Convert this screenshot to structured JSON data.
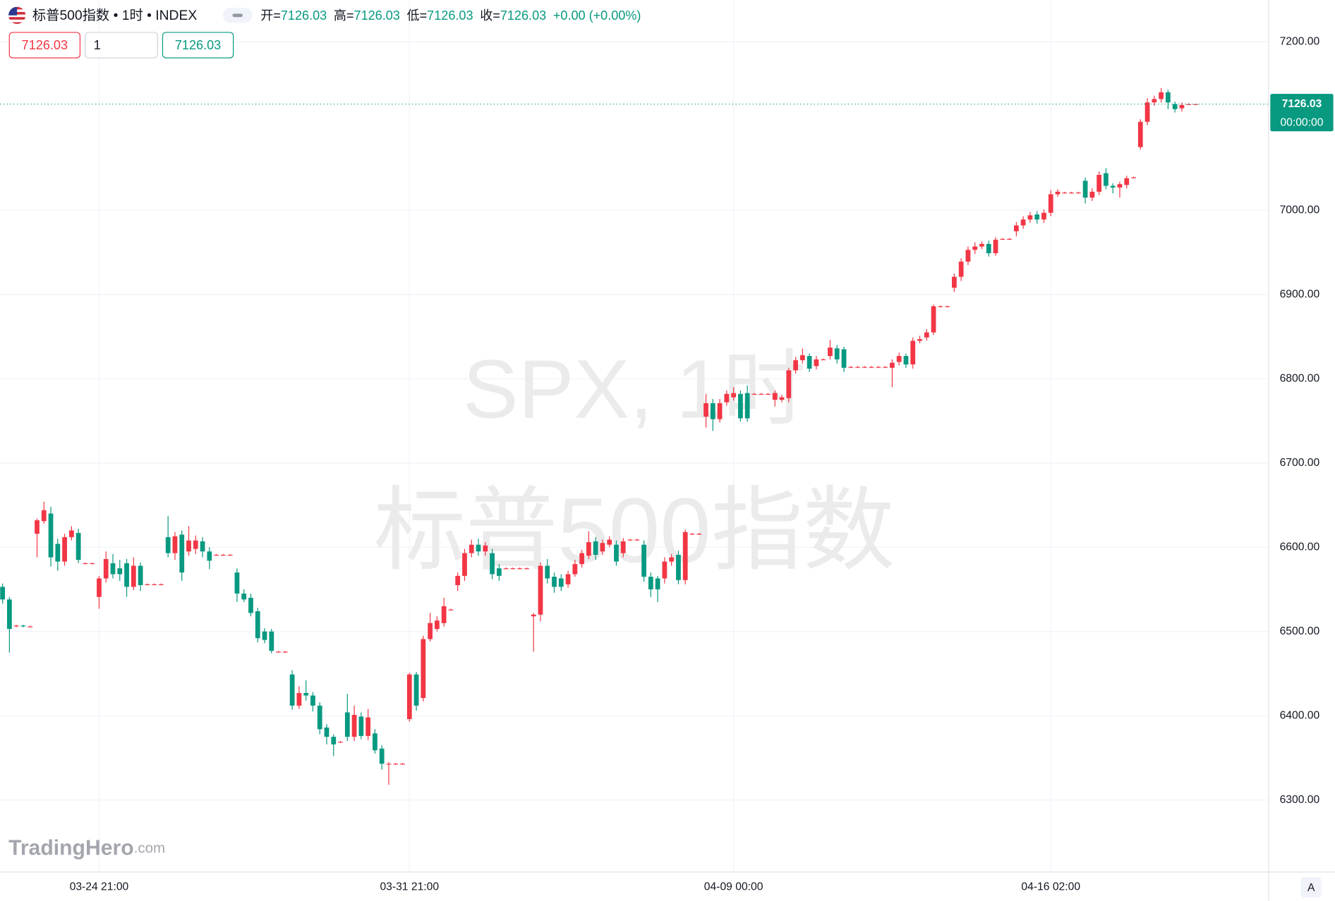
{
  "chart_data": {
    "type": "candlestick",
    "header": {
      "symbol": "标普500指数 • 1时 • INDEX",
      "ohlc": [
        {
          "label": "开=",
          "value": "7126.03"
        },
        {
          "label": "高=",
          "value": "7126.03"
        },
        {
          "label": "低=",
          "value": "7126.03"
        },
        {
          "label": "收=",
          "value": "7126.03"
        }
      ],
      "change": "+0.00 (+0.00%)",
      "buttons": [
        "7126.03",
        "1",
        "7126.03"
      ]
    },
    "watermark": [
      "SPX, 1时",
      "标普500指数"
    ],
    "logo": {
      "name": "TradingHero",
      "suffix": ".com"
    },
    "axis_button": "A",
    "last_price": {
      "value": 7126.03,
      "label": "7126.03",
      "time": "00:00:00"
    },
    "up_color": "#f23645",
    "down_color": "#089981",
    "grid": true,
    "ylim": [
      6214.5,
      7249.5
    ],
    "yticks": [
      {
        "value": 6300,
        "label": "6300.00"
      },
      {
        "value": 6400,
        "label": "6400.00"
      },
      {
        "value": 6500,
        "label": "6500.00"
      },
      {
        "value": 6600,
        "label": "6600.00"
      },
      {
        "value": 6700,
        "label": "6700.00"
      },
      {
        "value": 6800,
        "label": "6800.00"
      },
      {
        "value": 6900,
        "label": "6900.00"
      },
      {
        "value": 7000,
        "label": "7000.00"
      },
      {
        "value": 7200,
        "label": "7200.00"
      }
    ],
    "x": [
      null,
      null,
      null,
      null,
      null,
      null,
      null,
      null,
      null,
      null,
      null,
      null,
      null,
      null,
      "03-24 21:00",
      null,
      null,
      null,
      null,
      null,
      null,
      null,
      null,
      null,
      null,
      null,
      null,
      null,
      null,
      null,
      null,
      null,
      null,
      null,
      null,
      null,
      null,
      null,
      null,
      null,
      null,
      null,
      null,
      null,
      null,
      null,
      null,
      null,
      null,
      null,
      null,
      null,
      null,
      null,
      null,
      null,
      null,
      null,
      null,
      "03-31 21:00",
      null,
      null,
      null,
      null,
      null,
      null,
      null,
      null,
      null,
      null,
      null,
      null,
      null,
      null,
      null,
      null,
      null,
      null,
      null,
      null,
      null,
      null,
      null,
      null,
      null,
      null,
      null,
      null,
      null,
      null,
      null,
      null,
      null,
      null,
      null,
      null,
      null,
      null,
      null,
      null,
      null,
      null,
      null,
      null,
      null,
      null,
      "04-09 00:00",
      null,
      null,
      null,
      null,
      null,
      null,
      null,
      null,
      null,
      null,
      null,
      null,
      null,
      null,
      null,
      null,
      null,
      null,
      null,
      null,
      null,
      null,
      null,
      null,
      null,
      null,
      null,
      null,
      null,
      null,
      null,
      null,
      null,
      null,
      null,
      null,
      null,
      null,
      null,
      null,
      null,
      null,
      null,
      null,
      null,
      "04-16 02:00",
      null,
      null,
      null,
      null,
      null,
      null,
      null,
      null,
      null,
      null,
      null,
      null,
      null,
      null,
      null,
      null,
      null,
      null,
      null,
      null,
      null
    ],
    "open": [
      6553,
      6538,
      6506,
      6507,
      6506,
      6616,
      6631,
      6640,
      6604,
      6583,
      6612,
      6617,
      6581,
      6581,
      6541,
      6563,
      6581,
      6575,
      6581,
      6553,
      6578,
      6556,
      6556,
      6556,
      6612,
      6593,
      6615,
      6595,
      6598,
      6607,
      6595,
      6591,
      6591,
      6591,
      6570,
      6545,
      6540,
      6524,
      6500,
      6500,
      6476,
      6476,
      6449,
      6412,
      6427,
      6424,
      6412,
      6386,
      6375,
      6369,
      6404,
      6375,
      6399,
      6376,
      6379,
      6361,
      6342,
      6343,
      6343,
      6396,
      6449,
      6421,
      6491,
      6503,
      6510,
      6526,
      6555,
      6566,
      6593,
      6603,
      6595,
      6593,
      6575,
      6575,
      6575,
      6575,
      6575,
      6518,
      6520,
      6578,
      6565,
      6563,
      6556,
      6568,
      6580,
      6590,
      6607,
      6595,
      6603,
      6603,
      6593,
      6609,
      6609,
      6603,
      6565,
      6563,
      6563,
      6583,
      6591,
      6561,
      6616,
      6616,
      6755,
      6771,
      6752,
      6772,
      6778,
      6782,
      6783,
      6782,
      6782,
      6782,
      6775,
      6775,
      6777,
      6810,
      6822,
      6827,
      6815,
      6823,
      6827,
      6836,
      6835,
      6814,
      6814,
      6814,
      6814,
      6814,
      6814,
      6813,
      6820,
      6827,
      6817,
      6845,
      6849,
      6855,
      6886,
      6886,
      6908,
      6921,
      6939,
      6953,
      6957,
      6960,
      6949,
      6966,
      6966,
      6975,
      6982,
      6989,
      6995,
      6989,
      6997,
      7019,
      7021,
      7021,
      7021,
      7035,
      7015,
      7022,
      7044,
      7029,
      7027,
      7030,
      7039,
      7075,
      7105,
      7128,
      7132,
      7140,
      7126,
      7121,
      7126,
      7126.03
    ],
    "high": [
      6557,
      6541,
      6508,
      6508,
      6507,
      6634,
      6654,
      6648,
      6610,
      6616,
      6625,
      6622,
      6582,
      6582,
      6566,
      6595,
      6592,
      6585,
      6586,
      6588,
      6582,
      6557,
      6557,
      6557,
      6637,
      6618,
      6620,
      6625,
      6614,
      6612,
      6600,
      6592,
      6592,
      6592,
      6575,
      6550,
      6545,
      6528,
      6504,
      6503,
      6477,
      6477,
      6454,
      6435,
      6442,
      6428,
      6416,
      6390,
      6378,
      6370,
      6426,
      6412,
      6404,
      6408,
      6384,
      6365,
      6345,
      6344,
      6344,
      6451,
      6452,
      6495,
      6522,
      6518,
      6540,
      6527,
      6570,
      6598,
      6609,
      6610,
      6606,
      6598,
      6580,
      6576,
      6576,
      6576,
      6576,
      6522,
      6582,
      6586,
      6570,
      6568,
      6572,
      6585,
      6597,
      6619,
      6612,
      6609,
      6613,
      6608,
      6611,
      6610,
      6610,
      6608,
      6570,
      6566,
      6588,
      6592,
      6596,
      6621,
      6617,
      6617,
      6782,
      6776,
      6776,
      6786,
      6790,
      6786,
      6792,
      6783,
      6783,
      6783,
      6786,
      6781,
      6813,
      6826,
      6836,
      6830,
      6827,
      6824,
      6846,
      6840,
      6838,
      6815,
      6815,
      6815,
      6815,
      6815,
      6815,
      6823,
      6831,
      6830,
      6849,
      6851,
      6859,
      6888,
      6887,
      6887,
      6925,
      6943,
      6957,
      6962,
      6963,
      6964,
      6968,
      6967,
      6967,
      6986,
      6993,
      6998,
      6999,
      7001,
      7024,
      7025,
      7022,
      7022,
      7022,
      7039,
      7026,
      7046,
      7050,
      7032,
      7034,
      7041,
      7040,
      7108,
      7133,
      7136,
      7145,
      7143,
      7129,
      7128,
      7127,
      7126.03
    ],
    "low": [
      6533,
      6475,
      6505,
      6505,
      6505,
      6588,
      6628,
      6577,
      6572,
      6578,
      6608,
      6581,
      6580,
      6580,
      6527,
      6558,
      6563,
      6560,
      6541,
      6549,
      6548,
      6555,
      6555,
      6555,
      6588,
      6585,
      6560,
      6590,
      6592,
      6588,
      6574,
      6590,
      6590,
      6590,
      6535,
      6535,
      6518,
      6487,
      6486,
      6474,
      6475,
      6475,
      6407,
      6408,
      6418,
      6405,
      6378,
      6366,
      6352,
      6368,
      6370,
      6370,
      6372,
      6371,
      6355,
      6336,
      6318,
      6342,
      6342,
      6393,
      6406,
      6417,
      6488,
      6500,
      6506,
      6525,
      6548,
      6560,
      6588,
      6590,
      6590,
      6562,
      6560,
      6574,
      6574,
      6574,
      6574,
      6476,
      6512,
      6557,
      6546,
      6548,
      6552,
      6565,
      6576,
      6586,
      6585,
      6591,
      6600,
      6578,
      6588,
      6608,
      6608,
      6559,
      6541,
      6535,
      6557,
      6578,
      6556,
      6556,
      6615,
      6615,
      6742,
      6738,
      6748,
      6768,
      6774,
      6749,
      6749,
      6781,
      6781,
      6781,
      6767,
      6772,
      6772,
      6806,
      6818,
      6808,
      6811,
      6822,
      6823,
      6818,
      6808,
      6813,
      6813,
      6813,
      6813,
      6813,
      6813,
      6790,
      6816,
      6813,
      6812,
      6842,
      6845,
      6852,
      6885,
      6885,
      6903,
      6916,
      6935,
      6948,
      6954,
      6945,
      6946,
      6965,
      6965,
      6969,
      6978,
      6985,
      6984,
      6985,
      6993,
      7016,
      7020,
      7020,
      7020,
      7008,
      7011,
      7018,
      7025,
      7020,
      7015,
      7026,
      7038,
      7072,
      7101,
      7124,
      7128,
      7120,
      7116,
      7117,
      7125,
      7126.03
    ],
    "close": [
      6538,
      6503,
      6507,
      6506,
      6506,
      6632,
      6644,
      6588,
      6583,
      6612,
      6620,
      6585,
      6581,
      6581,
      6563,
      6586,
      6568,
      6568,
      6553,
      6578,
      6555,
      6556,
      6556,
      6556,
      6593,
      6613,
      6570,
      6608,
      6608,
      6595,
      6584,
      6591,
      6591,
      6591,
      6545,
      6538,
      6522,
      6492,
      6490,
      6477,
      6476,
      6476,
      6412,
      6427,
      6424,
      6412,
      6384,
      6375,
      6366,
      6369,
      6375,
      6401,
      6376,
      6398,
      6359,
      6343,
      6343,
      6343,
      6343,
      6449,
      6412,
      6491,
      6510,
      6513,
      6530,
      6526,
      6566,
      6593,
      6603,
      6595,
      6602,
      6568,
      6566,
      6575,
      6575,
      6575,
      6575,
      6520,
      6578,
      6563,
      6553,
      6553,
      6568,
      6580,
      6593,
      6606,
      6591,
      6605,
      6609,
      6583,
      6607,
      6609,
      6609,
      6565,
      6550,
      6550,
      6583,
      6588,
      6561,
      6618,
      6616,
      6616,
      6771,
      6752,
      6771,
      6782,
      6783,
      6753,
      6753,
      6782,
      6782,
      6782,
      6783,
      6778,
      6810,
      6822,
      6828,
      6812,
      6823,
      6823,
      6837,
      6823,
      6813,
      6814,
      6814,
      6814,
      6814,
      6814,
      6814,
      6819,
      6827,
      6817,
      6845,
      6847,
      6855,
      6886,
      6886,
      6886,
      6921,
      6939,
      6953,
      6957,
      6960,
      6949,
      6965,
      6966,
      6966,
      6982,
      6989,
      6994,
      6989,
      6997,
      7019,
      7022,
      7021,
      7021,
      7021,
      7015,
      7022,
      7042,
      7029,
      7027,
      7031,
      7038,
      7039,
      7105,
      7128,
      7132,
      7140,
      7128,
      7120,
      7125,
      7126,
      7126.03
    ]
  }
}
